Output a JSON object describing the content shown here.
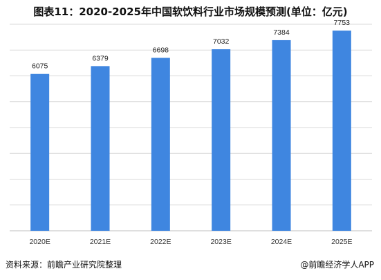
{
  "chart_data": {
    "type": "bar",
    "title": "图表11：2020-2025年中国软饮料行业市场规模预测(单位：亿元)",
    "categories": [
      "2020E",
      "2021E",
      "2022E",
      "2023E",
      "2024E",
      "2025E"
    ],
    "values": [
      6075,
      6379,
      6698,
      7032,
      7384,
      7753
    ],
    "ylim": [
      0,
      8000
    ],
    "grid": true,
    "bar_color": "#3f86e0"
  },
  "footer": {
    "source": "资料来源：前瞻产业研究院整理",
    "credit": "@前瞻经济学人APP"
  }
}
